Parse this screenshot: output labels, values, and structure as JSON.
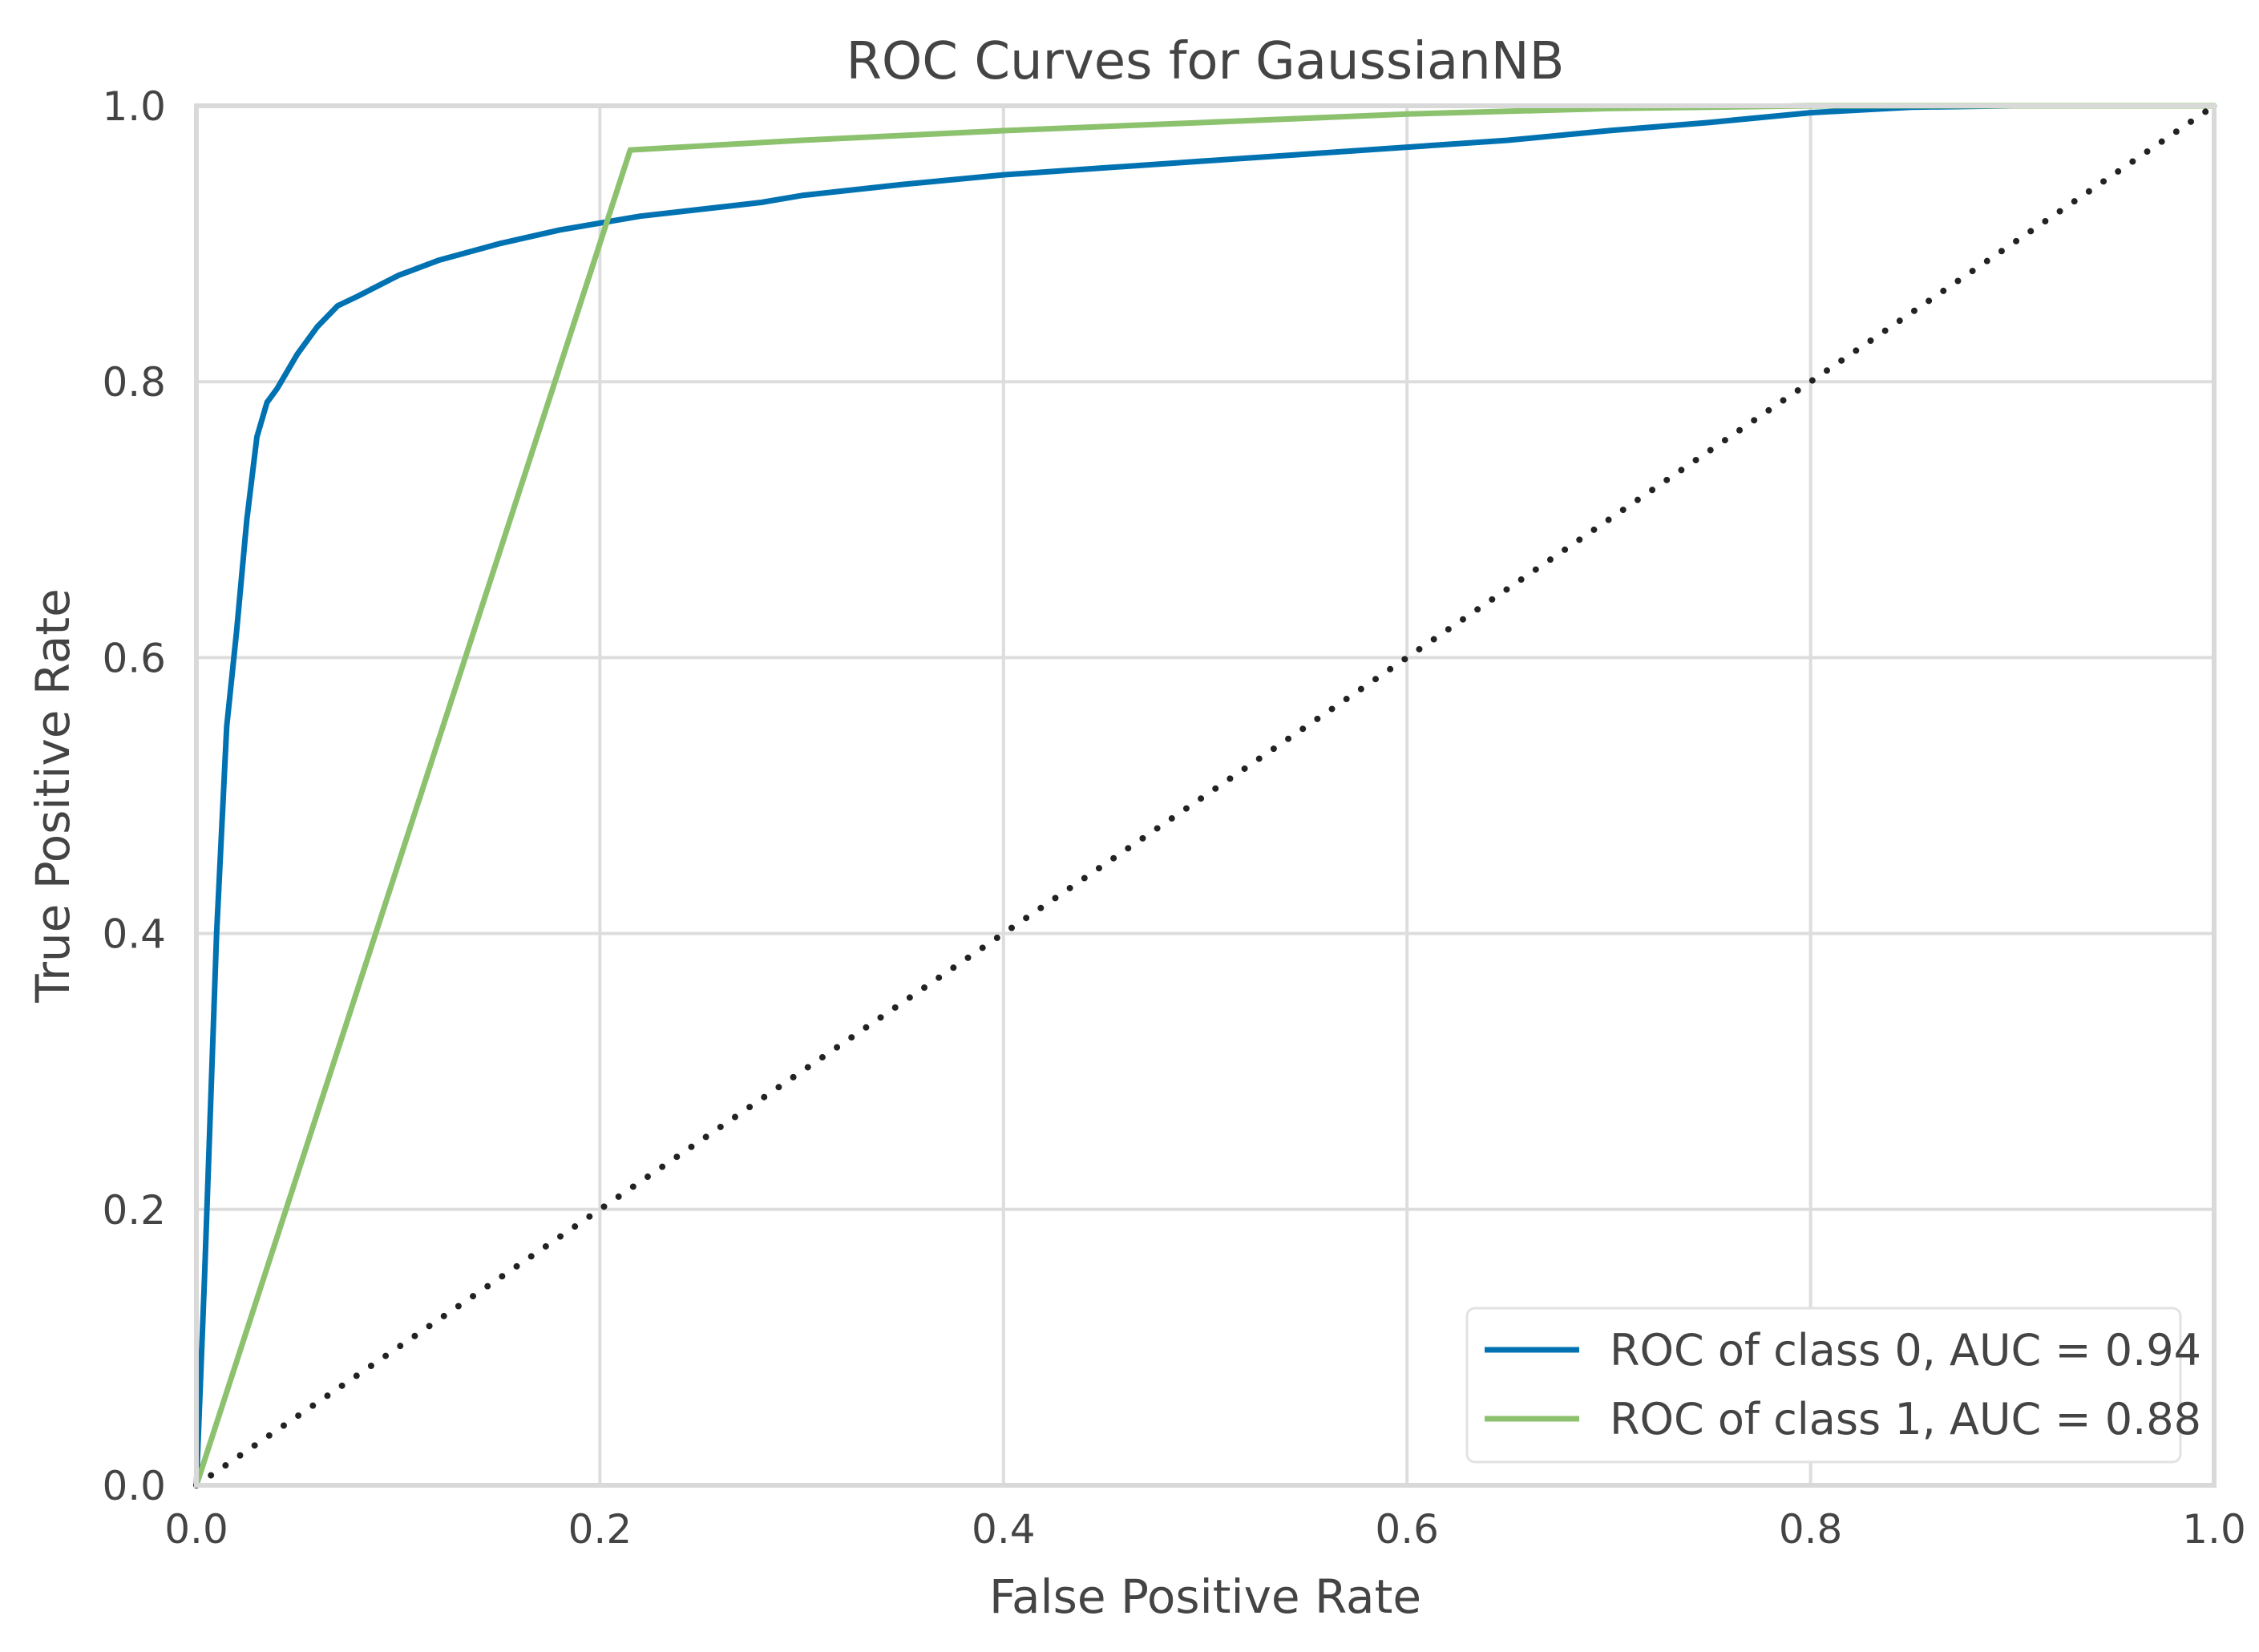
{
  "chart_data": {
    "type": "line",
    "title": "ROC Curves for GaussianNB",
    "xlabel": "False Positive Rate",
    "ylabel": "True Positive Rate",
    "xlim": [
      0,
      1
    ],
    "ylim": [
      0,
      1
    ],
    "x_ticks": [
      "0.0",
      "0.2",
      "0.4",
      "0.6",
      "0.8",
      "1.0"
    ],
    "y_ticks": [
      "0.0",
      "0.2",
      "0.4",
      "0.6",
      "0.8",
      "1.0"
    ],
    "grid": true,
    "legend_position": "bottom-right",
    "series": [
      {
        "name": "ROC of class 0, AUC = 0.94",
        "color": "#0072B2",
        "x": [
          0.0,
          0.004,
          0.01,
          0.015,
          0.02,
          0.025,
          0.03,
          0.035,
          0.04,
          0.05,
          0.06,
          0.07,
          0.08,
          0.1,
          0.12,
          0.15,
          0.18,
          0.2,
          0.22,
          0.25,
          0.28,
          0.3,
          0.35,
          0.4,
          0.45,
          0.5,
          0.55,
          0.6,
          0.65,
          0.7,
          0.75,
          0.8,
          0.85,
          0.9,
          1.0
        ],
        "y": [
          0.0,
          0.15,
          0.4,
          0.55,
          0.62,
          0.7,
          0.76,
          0.785,
          0.795,
          0.82,
          0.84,
          0.855,
          0.862,
          0.877,
          0.888,
          0.9,
          0.91,
          0.915,
          0.92,
          0.925,
          0.93,
          0.935,
          0.943,
          0.95,
          0.955,
          0.96,
          0.965,
          0.97,
          0.975,
          0.982,
          0.988,
          0.995,
          0.999,
          1.0,
          1.0
        ]
      },
      {
        "name": "ROC of class 1, AUC = 0.88",
        "color": "#8CC16E",
        "x": [
          0.0,
          0.215,
          0.3,
          0.4,
          0.5,
          0.6,
          0.7,
          0.8,
          1.0
        ],
        "y": [
          0.0,
          0.968,
          0.975,
          0.982,
          0.988,
          0.994,
          0.998,
          1.0,
          1.0
        ]
      }
    ],
    "reference_line": {
      "x": [
        0,
        1
      ],
      "y": [
        0,
        1
      ],
      "color": "#222222"
    }
  }
}
